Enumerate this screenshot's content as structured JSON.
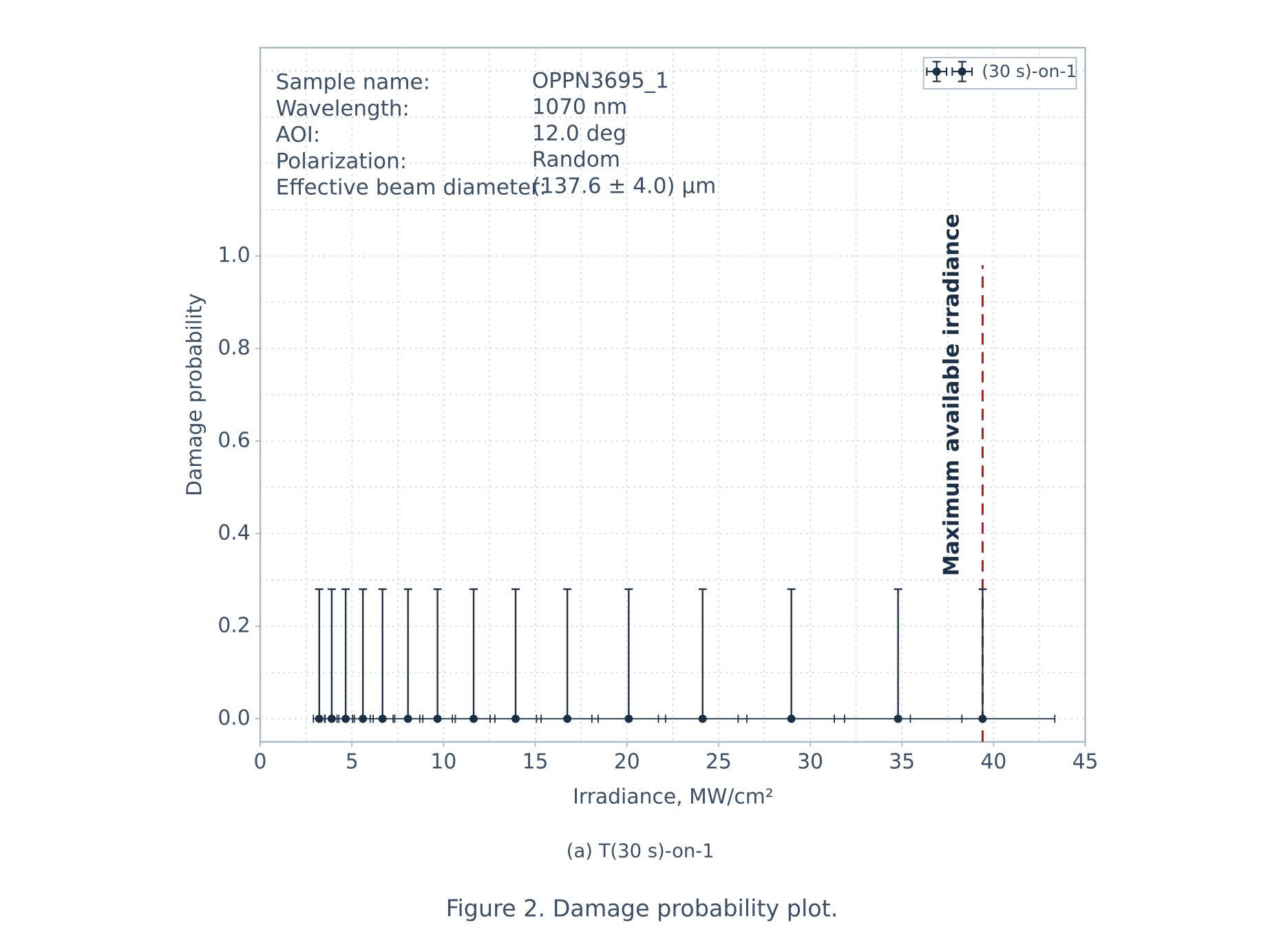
{
  "chart_data": {
    "type": "errorbar",
    "xlabel": "Irradiance, MW/cm²",
    "ylabel": "Damage probability",
    "xlim": [
      0,
      45
    ],
    "ylim": [
      -0.05,
      1.45
    ],
    "xticks": [
      0,
      5,
      10,
      15,
      20,
      25,
      30,
      35,
      40,
      45
    ],
    "yticks": [
      {
        "value": 0,
        "label": "0.0"
      },
      {
        "value": 0.2,
        "label": "0.2"
      },
      {
        "value": 0.4,
        "label": "0.4"
      },
      {
        "value": 0.6,
        "label": "0.6"
      },
      {
        "value": 0.8,
        "label": "0.8"
      },
      {
        "value": 1,
        "label": "1.0"
      }
    ],
    "xminorticks": [
      2.5,
      7.5,
      12.5,
      17.5,
      22.5,
      27.5,
      32.5,
      37.5,
      42.5
    ],
    "yminorticks": [
      0.1,
      0.3,
      0.5,
      0.7,
      0.9,
      1.1,
      1.2,
      1.3,
      1.4
    ],
    "grid": true,
    "legend": "upper right",
    "series": [
      {
        "name": "(30 s)-on-1",
        "color": "#1b2f47",
        "x": [
          3.22,
          3.9,
          4.66,
          5.6,
          6.67,
          8.06,
          9.67,
          11.64,
          13.93,
          16.75,
          20.1,
          24.13,
          28.97,
          34.79,
          39.4
        ],
        "values": [
          0,
          0,
          0,
          0,
          0,
          0,
          0,
          0,
          0,
          0,
          0,
          0,
          0,
          0,
          0
        ],
        "yerr_upper": [
          0.28,
          0.28,
          0.28,
          0.28,
          0.28,
          0.28,
          0.28,
          0.28,
          0.28,
          0.28,
          0.28,
          0.28,
          0.28,
          0.28,
          0.28
        ],
        "xerr": [
          0.32,
          0.39,
          0.47,
          0.56,
          0.67,
          0.81,
          0.97,
          1.16,
          1.39,
          1.68,
          2.01,
          2.41,
          2.9,
          3.48,
          3.94
        ]
      }
    ],
    "vline": {
      "x": 39.4,
      "ymax": 0.98,
      "color": "#a32020",
      "label": "Maximum available irradiance"
    },
    "info_labels": [
      "Sample name:",
      "Wavelength:",
      "AOI:",
      "Polarization:",
      "Effective beam diameter:"
    ],
    "info_values": [
      "OPPN3695_1",
      "1070 nm",
      "12.0 deg",
      "Random",
      "(137.6 ± 4.0) μm"
    ],
    "subcaption": "(a)  T(30 s)-on-1",
    "caption": "Figure 2.  Damage probability plot."
  }
}
